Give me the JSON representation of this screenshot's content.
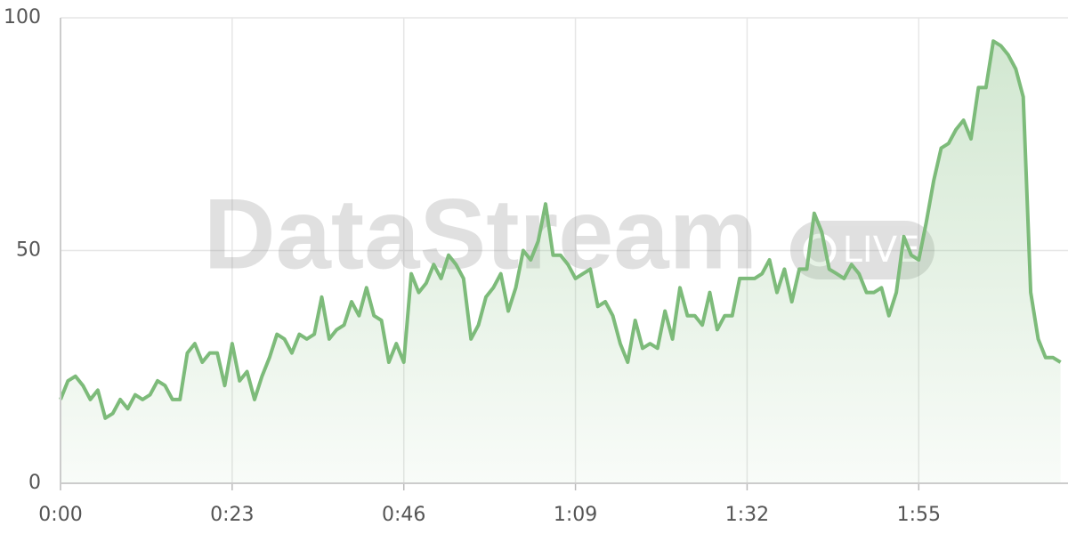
{
  "chart_data": {
    "type": "area",
    "watermark": "DataStream",
    "watermark_badge": "LIVE",
    "color": "#7dbb7a",
    "x": [
      0,
      1,
      2,
      3,
      4,
      5,
      6,
      7,
      8,
      9,
      10,
      11,
      12,
      13,
      14,
      15,
      16,
      17,
      18,
      19,
      20,
      21,
      22,
      23,
      24,
      25,
      26,
      27,
      28,
      29,
      30,
      31,
      32,
      33,
      34,
      35,
      36,
      37,
      38,
      39,
      40,
      41,
      42,
      43,
      44,
      45,
      46,
      47,
      48,
      49,
      50,
      51,
      52,
      53,
      54,
      55,
      56,
      57,
      58,
      59,
      60,
      61,
      62,
      63,
      64,
      65,
      66,
      67,
      68,
      69,
      70,
      71,
      72,
      73,
      74,
      75,
      76,
      77,
      78,
      79,
      80,
      81,
      82,
      83,
      84,
      85,
      86,
      87,
      88,
      89,
      90,
      91,
      92,
      93,
      94,
      95,
      96,
      97,
      98,
      99,
      100,
      101,
      102,
      103,
      104,
      105,
      106,
      107,
      108,
      109,
      110,
      111,
      112,
      113,
      114,
      115,
      116,
      117,
      118,
      119,
      120,
      121,
      122,
      123,
      124,
      125,
      126,
      127,
      128,
      129,
      130,
      131,
      132,
      133,
      134
    ],
    "values": [
      18,
      22,
      23,
      21,
      18,
      20,
      14,
      15,
      18,
      16,
      19,
      18,
      19,
      22,
      21,
      18,
      18,
      28,
      30,
      26,
      28,
      28,
      21,
      30,
      22,
      24,
      18,
      23,
      27,
      32,
      31,
      28,
      32,
      31,
      32,
      40,
      31,
      33,
      34,
      39,
      36,
      42,
      36,
      35,
      26,
      30,
      26,
      45,
      41,
      43,
      47,
      44,
      49,
      47,
      44,
      31,
      34,
      40,
      42,
      45,
      37,
      42,
      50,
      48,
      52,
      60,
      49,
      49,
      47,
      44,
      45,
      46,
      38,
      39,
      36,
      30,
      26,
      35,
      29,
      30,
      29,
      37,
      31,
      42,
      36,
      36,
      34,
      41,
      33,
      36,
      36,
      44,
      44,
      44,
      45,
      48,
      41,
      46,
      39,
      46,
      46,
      58,
      54,
      46,
      45,
      44,
      47,
      45,
      41,
      41,
      42,
      36,
      41,
      53,
      49,
      48,
      56,
      65,
      72,
      73,
      76,
      78,
      74,
      85,
      85,
      95,
      94,
      92,
      89,
      83,
      41,
      31,
      27,
      27,
      26
    ],
    "xlim": [
      0,
      135
    ],
    "ylim": [
      0,
      100
    ],
    "xticks": [
      {
        "value": 0,
        "label": "0:00"
      },
      {
        "value": 23,
        "label": "0:23"
      },
      {
        "value": 46,
        "label": "0:46"
      },
      {
        "value": 69,
        "label": "1:09"
      },
      {
        "value": 92,
        "label": "1:32"
      },
      {
        "value": 115,
        "label": "1:55"
      }
    ],
    "yticks": [
      0,
      50,
      100
    ],
    "grid": true
  }
}
